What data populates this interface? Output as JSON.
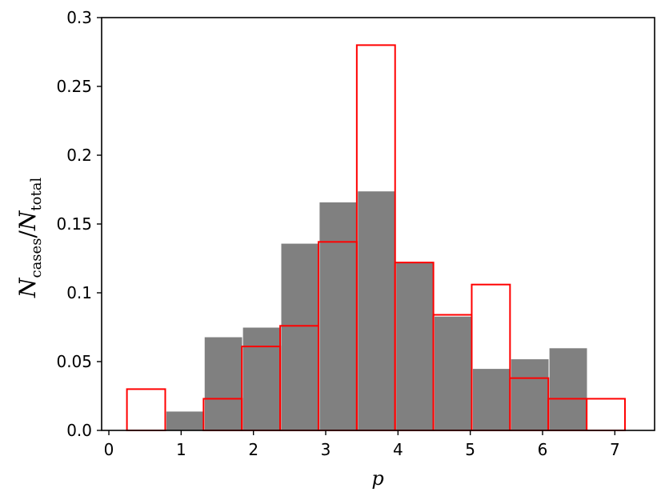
{
  "chart_data": {
    "type": "bar",
    "xlabel": "p",
    "ylabel": {
      "main1": "N",
      "sub1": "cases",
      "sep": "/",
      "main2": "N",
      "sub2": "total"
    },
    "xlim": [
      -0.1,
      7.55
    ],
    "ylim": [
      0,
      0.3
    ],
    "xticks": [
      0,
      1,
      2,
      3,
      4,
      5,
      6,
      7
    ],
    "xtick_labels": [
      "0",
      "1",
      "2",
      "3",
      "4",
      "5",
      "6",
      "7"
    ],
    "yticks": [
      0,
      0.05,
      0.1,
      0.15,
      0.2,
      0.25,
      0.3
    ],
    "ytick_labels": [
      "0.0",
      "0.05",
      "0.1",
      "0.15",
      "0.2",
      "0.25",
      "0.3"
    ],
    "grid": false,
    "series": [
      {
        "style": "filled",
        "color": "#808080",
        "bins": [
          {
            "x0": 0.79,
            "x1": 1.32,
            "value": 0.014
          },
          {
            "x0": 1.32,
            "x1": 1.85,
            "value": 0.068
          },
          {
            "x0": 1.85,
            "x1": 2.38,
            "value": 0.075
          },
          {
            "x0": 2.38,
            "x1": 2.91,
            "value": 0.136
          },
          {
            "x0": 2.91,
            "x1": 3.44,
            "value": 0.166
          },
          {
            "x0": 3.44,
            "x1": 3.97,
            "value": 0.174
          },
          {
            "x0": 3.97,
            "x1": 4.5,
            "value": 0.122
          },
          {
            "x0": 4.5,
            "x1": 5.03,
            "value": 0.083
          },
          {
            "x0": 5.03,
            "x1": 5.56,
            "value": 0.045
          },
          {
            "x0": 5.56,
            "x1": 6.09,
            "value": 0.052
          },
          {
            "x0": 6.09,
            "x1": 6.62,
            "value": 0.06
          }
        ]
      },
      {
        "style": "outline",
        "color": "#ff0000",
        "bins": [
          {
            "x0": 0.25,
            "x1": 0.78,
            "value": 0.03
          },
          {
            "x0": 0.78,
            "x1": 1.31,
            "value": 0.0
          },
          {
            "x0": 1.31,
            "x1": 1.84,
            "value": 0.023
          },
          {
            "x0": 1.84,
            "x1": 2.37,
            "value": 0.061
          },
          {
            "x0": 2.37,
            "x1": 2.9,
            "value": 0.076
          },
          {
            "x0": 2.9,
            "x1": 3.43,
            "value": 0.137
          },
          {
            "x0": 3.43,
            "x1": 3.96,
            "value": 0.28
          },
          {
            "x0": 3.96,
            "x1": 4.49,
            "value": 0.122
          },
          {
            "x0": 4.49,
            "x1": 5.02,
            "value": 0.084
          },
          {
            "x0": 5.02,
            "x1": 5.55,
            "value": 0.106
          },
          {
            "x0": 5.55,
            "x1": 6.08,
            "value": 0.038
          },
          {
            "x0": 6.08,
            "x1": 6.61,
            "value": 0.023
          },
          {
            "x0": 6.61,
            "x1": 7.14,
            "value": 0.023
          }
        ]
      }
    ]
  }
}
